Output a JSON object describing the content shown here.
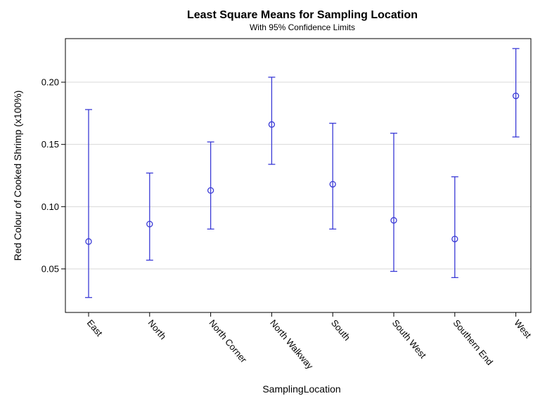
{
  "chart_data": {
    "type": "scatter",
    "title": "Least Square Means for Sampling Location",
    "subtitle": "With 95% Confidence Limits",
    "xlabel": "SamplingLocation",
    "ylabel": "Red Colour of Cooked Shrimp (x100%)",
    "ylim": [
      0.015,
      0.235
    ],
    "yticks": [
      0.05,
      0.1,
      0.15,
      0.2
    ],
    "ytick_labels": [
      "0.05",
      "0.10",
      "0.15",
      "0.20"
    ],
    "grid": true,
    "colors": {
      "series": "#3a3ad6"
    },
    "categories": [
      "East",
      "North",
      "North Corner",
      "North Walkway",
      "South",
      "South West",
      "Southern End",
      "West"
    ],
    "series": [
      {
        "mean": [
          0.072,
          0.086,
          0.113,
          0.166,
          0.118,
          0.089,
          0.074,
          0.189
        ],
        "lower": [
          0.027,
          0.057,
          0.082,
          0.134,
          0.082,
          0.048,
          0.043,
          0.156
        ],
        "upper": [
          0.178,
          0.127,
          0.152,
          0.204,
          0.167,
          0.159,
          0.124,
          0.227
        ]
      }
    ]
  }
}
